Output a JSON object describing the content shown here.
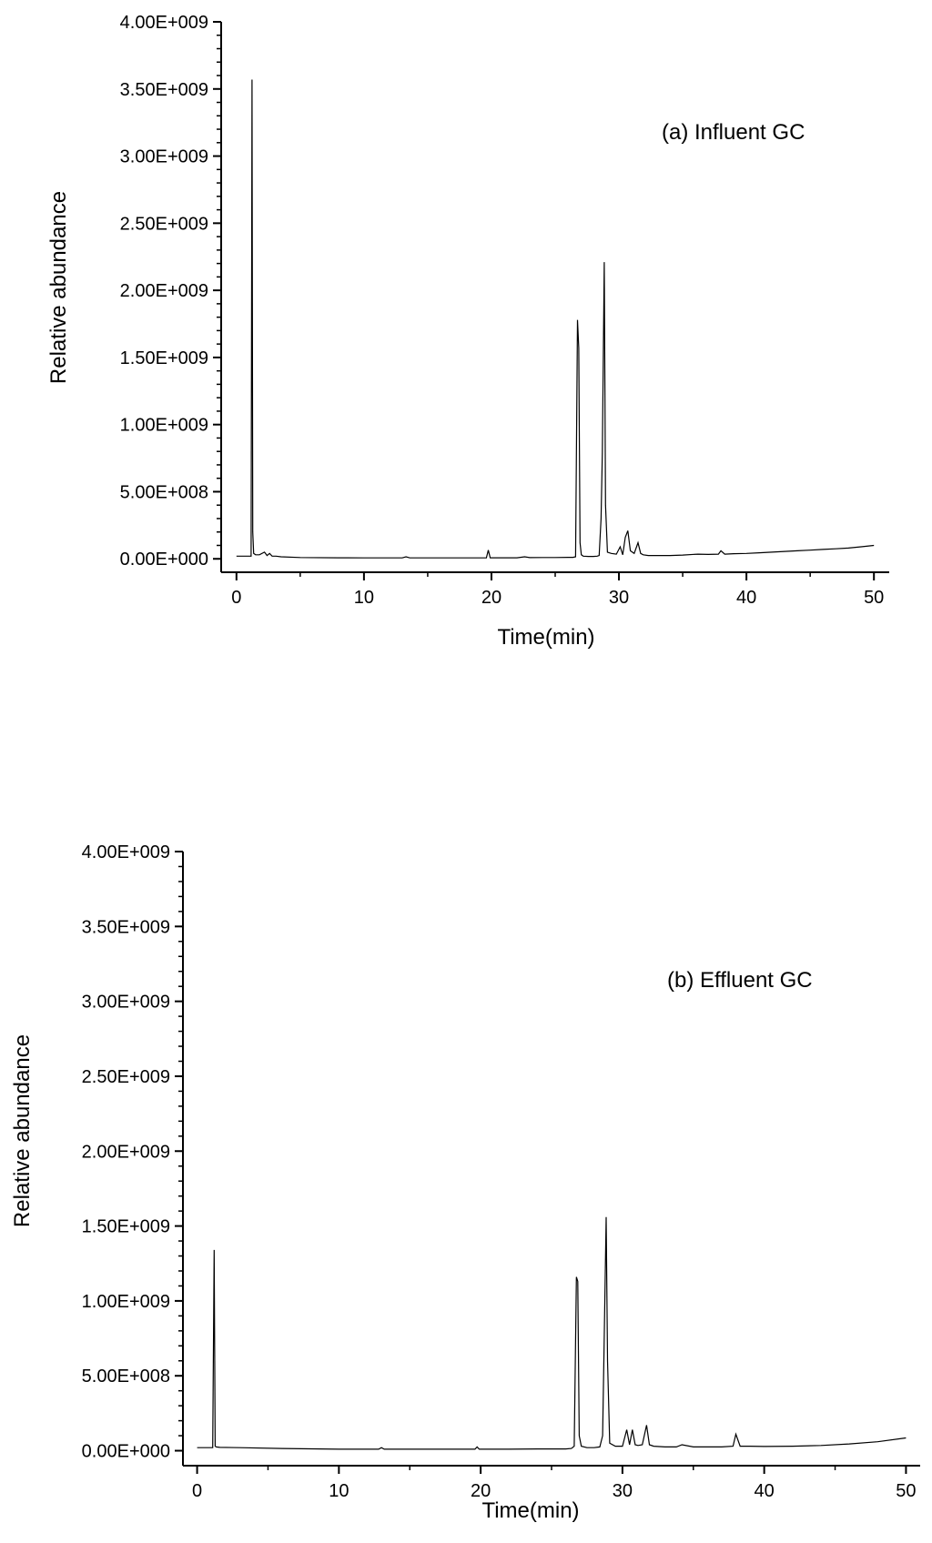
{
  "chart_data": [
    {
      "type": "line",
      "annotation": "(a) Influent GC",
      "xlabel": "Time(min)",
      "ylabel": "Relative abundance",
      "xlim": [
        -1.2,
        51.2
      ],
      "ylim": [
        -100000000.0,
        4000000000.0
      ],
      "xticks": [
        0,
        10,
        20,
        30,
        40,
        50
      ],
      "xtick_labels": [
        "0",
        "10",
        "20",
        "30",
        "40",
        "50"
      ],
      "yticks": [
        0,
        500000000.0,
        1000000000.0,
        1500000000.0,
        2000000000.0,
        2500000000.0,
        3000000000.0,
        3500000000.0,
        4000000000.0
      ],
      "ytick_labels": [
        "0.00E+000",
        "5.00E+008",
        "1.00E+009",
        "1.50E+009",
        "2.00E+009",
        "2.50E+009",
        "3.00E+009",
        "3.50E+009",
        "4.00E+009"
      ],
      "grid": false,
      "legend": "none",
      "series": [
        {
          "x": [
            0,
            1.15,
            1.22,
            1.28,
            1.35,
            1.5,
            1.8,
            2.2,
            2.4,
            2.6,
            2.8,
            3.1,
            3.5,
            5,
            8,
            10,
            13,
            13.3,
            13.6,
            17,
            19.6,
            19.75,
            19.9,
            22,
            22.6,
            23,
            24,
            25,
            26,
            26.4,
            26.6,
            26.75,
            26.85,
            26.95,
            27.05,
            27.2,
            27.6,
            28,
            28.3,
            28.45,
            28.6,
            28.7,
            28.85,
            28.95,
            29.1,
            29.4,
            29.8,
            30.1,
            30.3,
            30.5,
            30.7,
            30.9,
            31.2,
            31.5,
            31.7,
            31.9,
            32.3,
            33,
            34,
            35,
            36.2,
            37,
            37.8,
            38.0,
            38.3,
            39,
            40,
            41,
            42,
            43,
            44,
            45,
            46,
            47,
            48,
            49,
            50
          ],
          "y": [
            20000000.0,
            20000000.0,
            3570000000.0,
            200000000.0,
            40000000.0,
            30000000.0,
            30000000.0,
            50000000.0,
            25000000.0,
            40000000.0,
            20000000.0,
            20000000.0,
            15000000.0,
            10000000.0,
            8000000.0,
            7000000.0,
            7000000.0,
            15000000.0,
            7000000.0,
            7000000.0,
            7000000.0,
            65000000.0,
            8000000.0,
            8000000.0,
            15000000.0,
            9000000.0,
            10000000.0,
            10000000.0,
            11000000.0,
            11000000.0,
            15000000.0,
            1780000000.0,
            1570000000.0,
            120000000.0,
            30000000.0,
            20000000.0,
            18000000.0,
            18000000.0,
            20000000.0,
            25000000.0,
            300000000.0,
            790000000.0,
            2210000000.0,
            400000000.0,
            50000000.0,
            40000000.0,
            35000000.0,
            90000000.0,
            30000000.0,
            160000000.0,
            210000000.0,
            60000000.0,
            40000000.0,
            120000000.0,
            40000000.0,
            30000000.0,
            25000000.0,
            25000000.0,
            25000000.0,
            28000000.0,
            35000000.0,
            33000000.0,
            35000000.0,
            60000000.0,
            35000000.0,
            38000000.0,
            40000000.0,
            45000000.0,
            50000000.0,
            55000000.0,
            60000000.0,
            65000000.0,
            70000000.0,
            75000000.0,
            80000000.0,
            90000000.0,
            100000000.0
          ]
        }
      ]
    },
    {
      "type": "line",
      "annotation": "(b) Effluent GC",
      "xlabel": "Time(min)",
      "ylabel": "Relative abundance",
      "xlim": [
        -1.0,
        51.0
      ],
      "ylim": [
        -100000000.0,
        4000000000.0
      ],
      "xticks": [
        0,
        10,
        20,
        30,
        40,
        50
      ],
      "xtick_labels": [
        "0",
        "10",
        "20",
        "30",
        "40",
        "50"
      ],
      "yticks": [
        0,
        500000000.0,
        1000000000.0,
        1500000000.0,
        2000000000.0,
        2500000000.0,
        3000000000.0,
        3500000000.0,
        4000000000.0
      ],
      "ytick_labels": [
        "0.00E+000",
        "5.00E+008",
        "1.00E+009",
        "1.50E+009",
        "2.00E+009",
        "2.50E+009",
        "3.00E+009",
        "3.50E+009",
        "4.00E+009"
      ],
      "grid": false,
      "legend": "none",
      "series": [
        {
          "x": [
            0,
            1.1,
            1.2,
            1.27,
            1.35,
            1.6,
            3,
            6,
            10,
            12.8,
            13.0,
            13.2,
            16,
            19.6,
            19.75,
            19.9,
            22,
            24,
            26,
            26.4,
            26.6,
            26.75,
            26.85,
            26.95,
            27.1,
            27.5,
            28,
            28.4,
            28.6,
            28.7,
            28.85,
            28.95,
            29.1,
            29.5,
            30.0,
            30.3,
            30.5,
            30.7,
            30.9,
            31.1,
            31.4,
            31.7,
            31.9,
            32.2,
            33,
            33.8,
            34.2,
            35,
            36,
            37,
            37.8,
            38.0,
            38.3,
            39,
            40,
            42,
            44,
            46,
            48,
            50
          ],
          "y": [
            20000000.0,
            20000000.0,
            1340000000.0,
            30000000.0,
            25000000.0,
            22000000.0,
            20000000.0,
            15000000.0,
            10000000.0,
            10000000.0,
            20000000.0,
            10000000.0,
            10000000.0,
            10000000.0,
            25000000.0,
            10000000.0,
            10000000.0,
            12000000.0,
            12000000.0,
            15000000.0,
            30000000.0,
            1160000000.0,
            1130000000.0,
            100000000.0,
            30000000.0,
            20000000.0,
            20000000.0,
            25000000.0,
            100000000.0,
            650000000.0,
            1560000000.0,
            600000000.0,
            50000000.0,
            30000000.0,
            30000000.0,
            140000000.0,
            40000000.0,
            140000000.0,
            40000000.0,
            35000000.0,
            40000000.0,
            170000000.0,
            40000000.0,
            30000000.0,
            25000000.0,
            25000000.0,
            40000000.0,
            25000000.0,
            25000000.0,
            25000000.0,
            30000000.0,
            110000000.0,
            30000000.0,
            30000000.0,
            28000000.0,
            30000000.0,
            35000000.0,
            45000000.0,
            60000000.0,
            85000000.0
          ]
        }
      ]
    }
  ]
}
